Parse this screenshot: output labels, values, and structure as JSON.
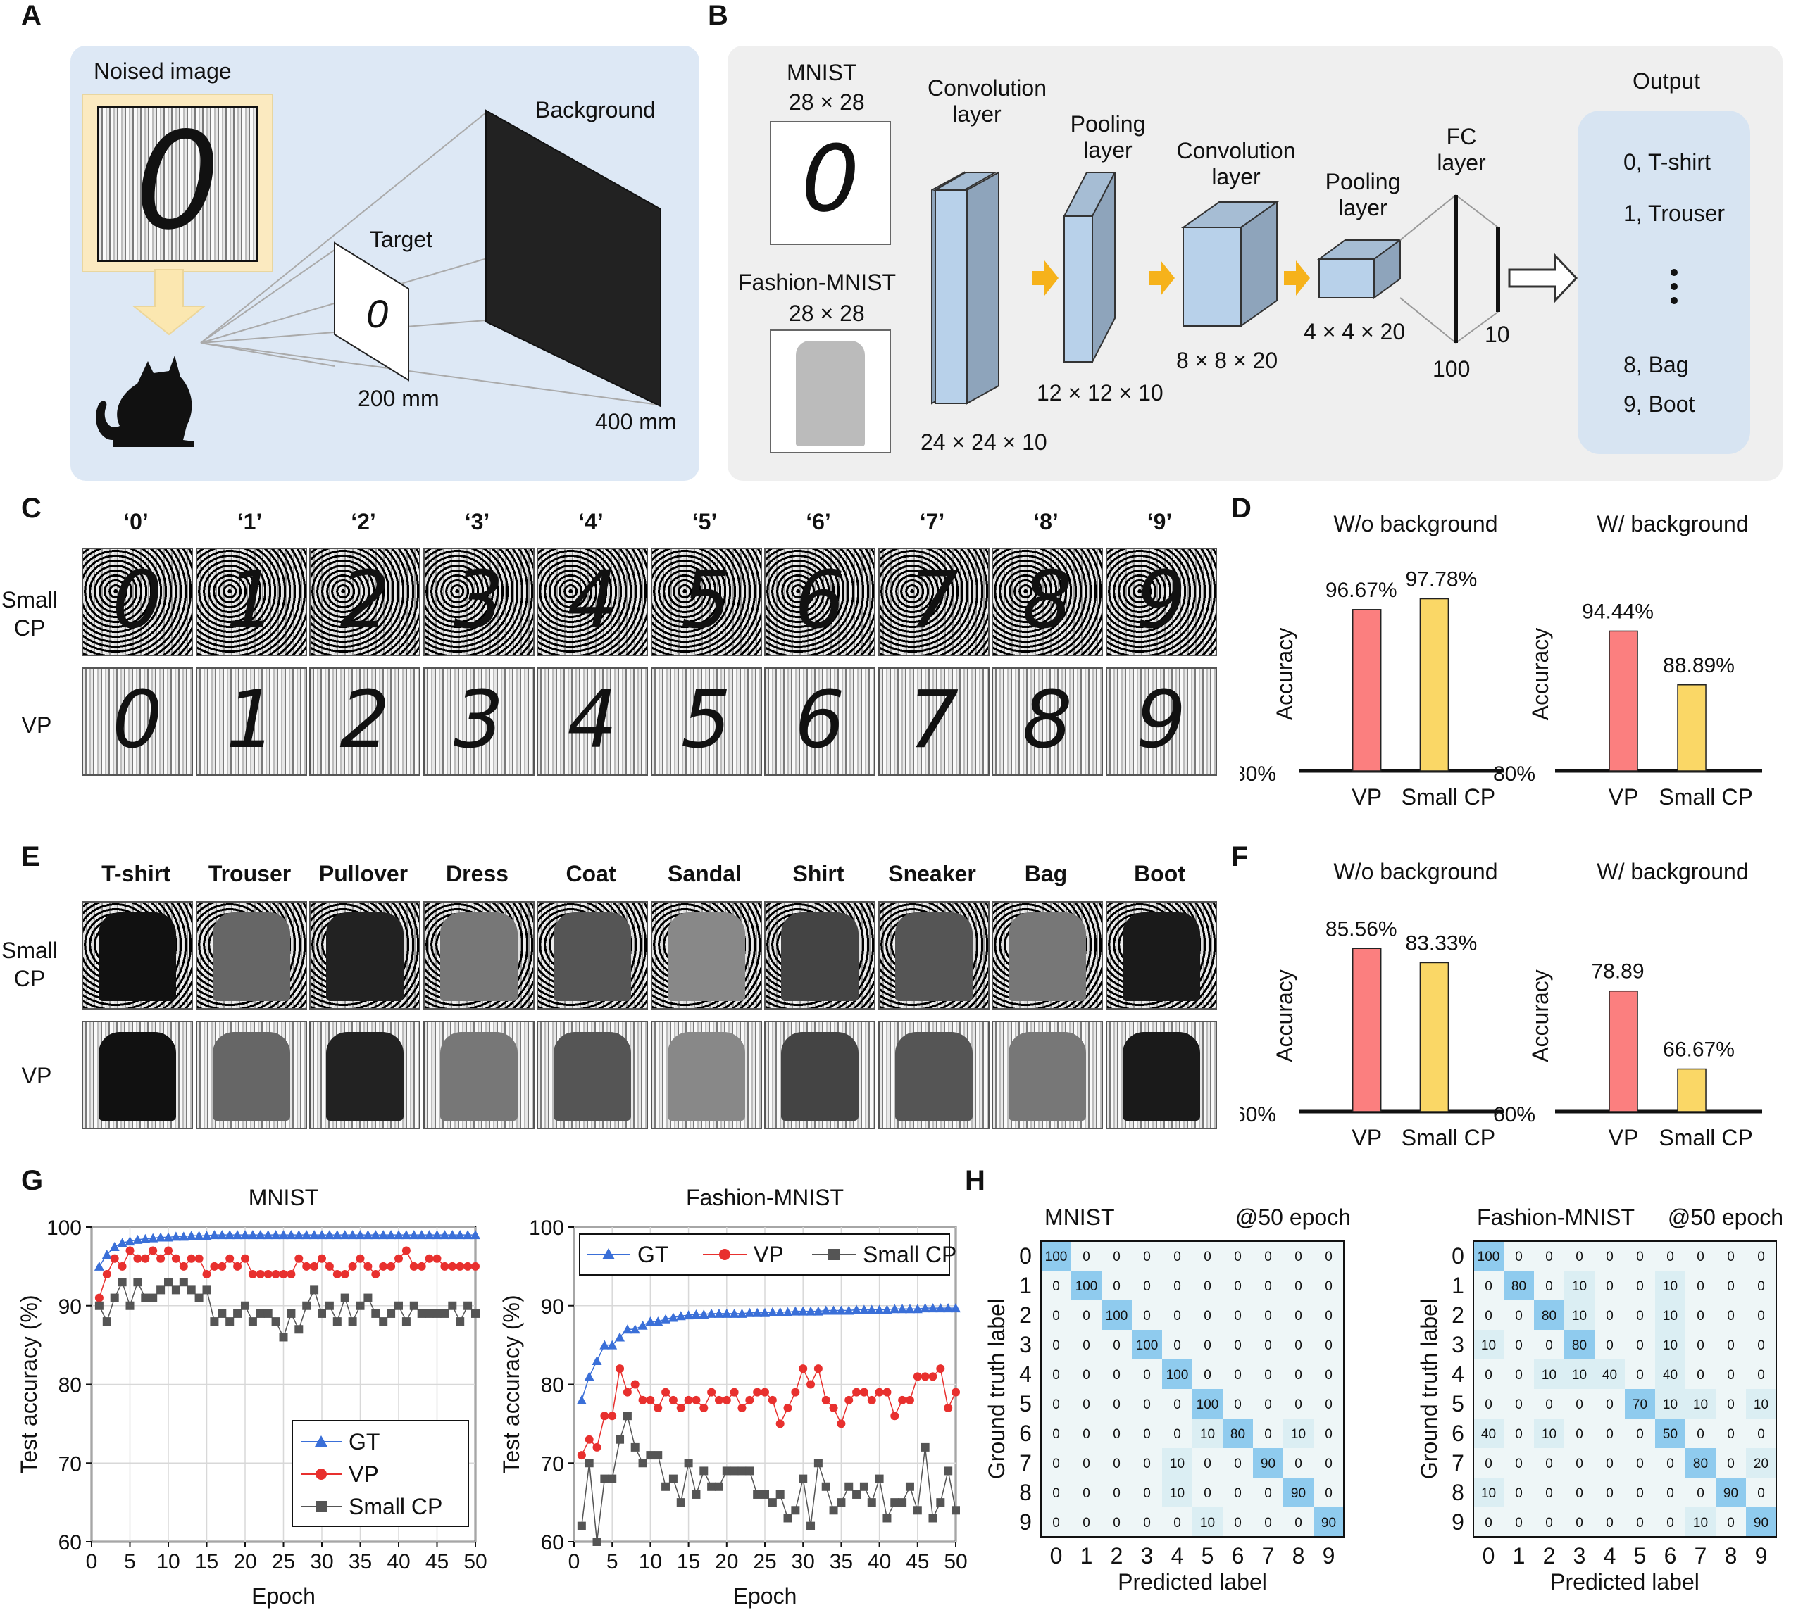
{
  "panel_letters": {
    "A": "A",
    "B": "B",
    "C": "C",
    "D": "D",
    "E": "E",
    "F": "F",
    "G": "G",
    "H": "H"
  },
  "panelA": {
    "noised_image": "Noised image",
    "background": "Background",
    "target": "Target",
    "dist_target": "200 mm",
    "dist_bg": "400 mm"
  },
  "panelB": {
    "mnist": "MNIST",
    "mnist_size": "28 × 28",
    "fashion": "Fashion-MNIST",
    "fashion_size": "28 × 28",
    "conv1": "Convolution layer",
    "conv1_size": "24 × 24 × 10",
    "pool1": "Pooling layer",
    "pool1_size": "12 × 12 × 10",
    "conv2": "Convolution layer",
    "conv2_size": "8 × 8 × 20",
    "pool2": "Pooling layer",
    "pool2_size": "4 × 4 × 20",
    "fc": "FC layer",
    "fc_100": "100",
    "fc_10": "10",
    "output": "Output",
    "outputs": [
      "0, T-shirt",
      "1, Trouser",
      "8, Bag",
      "9, Boot"
    ]
  },
  "panelC": {
    "headers": [
      "‘0’",
      "‘1’",
      "‘2’",
      "‘3’",
      "‘4’",
      "‘5’",
      "‘6’",
      "‘7’",
      "‘8’",
      "‘9’"
    ],
    "row1": "Small CP",
    "row2": "VP",
    "digits": [
      "0",
      "1",
      "2",
      "3",
      "4",
      "5",
      "6",
      "7",
      "8",
      "9"
    ]
  },
  "panelE": {
    "headers": [
      "T-shirt",
      "Trouser",
      "Pullover",
      "Dress",
      "Coat",
      "Sandal",
      "Shirt",
      "Sneaker",
      "Bag",
      "Boot"
    ],
    "row1": "Small CP",
    "row2": "VP"
  },
  "chart_data": [
    {
      "id": "D-left",
      "type": "bar",
      "title": "W/o background",
      "ylabel": "Accuracy",
      "baseline": "80%",
      "ylim": [
        80,
        100
      ],
      "categories": [
        "VP",
        "Small CP"
      ],
      "values": [
        96.67,
        97.78
      ],
      "labels": [
        "96.67%",
        "97.78%"
      ],
      "colors": [
        "#fb7f7f",
        "#fad766"
      ]
    },
    {
      "id": "D-right",
      "type": "bar",
      "title": "W/ background",
      "ylabel": "Accuracy",
      "baseline": "80%",
      "ylim": [
        80,
        100
      ],
      "categories": [
        "VP",
        "Small CP"
      ],
      "values": [
        94.44,
        88.89
      ],
      "labels": [
        "94.44%",
        "88.89%"
      ],
      "colors": [
        "#fb7f7f",
        "#fad766"
      ]
    },
    {
      "id": "F-left",
      "type": "bar",
      "title": "W/o background",
      "ylabel": "Accuracy",
      "baseline": "60%",
      "ylim": [
        60,
        90
      ],
      "categories": [
        "VP",
        "Small CP"
      ],
      "values": [
        85.56,
        83.33
      ],
      "labels": [
        "85.56%",
        "83.33%"
      ],
      "colors": [
        "#fb7f7f",
        "#fad766"
      ]
    },
    {
      "id": "F-right",
      "type": "bar",
      "title": "W/ background",
      "ylabel": "Accuracy",
      "baseline": "60%",
      "ylim": [
        60,
        90
      ],
      "categories": [
        "VP",
        "Small CP"
      ],
      "values": [
        78.89,
        66.67
      ],
      "labels": [
        "78.89",
        "66.67%"
      ],
      "colors": [
        "#fb7f7f",
        "#fad766"
      ]
    },
    {
      "id": "G-left",
      "type": "line",
      "title": "MNIST",
      "xlabel": "Epoch",
      "ylabel": "Test accuracy (%)",
      "xlim": [
        0,
        50
      ],
      "ylim": [
        60,
        100
      ],
      "xticks": [
        0,
        5,
        10,
        15,
        20,
        25,
        30,
        35,
        40,
        45,
        50
      ],
      "yticks": [
        60,
        70,
        80,
        90,
        100
      ],
      "x": [
        1,
        2,
        3,
        4,
        5,
        6,
        7,
        8,
        9,
        10,
        11,
        12,
        13,
        14,
        15,
        16,
        17,
        18,
        19,
        20,
        21,
        22,
        23,
        24,
        25,
        26,
        27,
        28,
        29,
        30,
        31,
        32,
        33,
        34,
        35,
        36,
        37,
        38,
        39,
        40,
        41,
        42,
        43,
        44,
        45,
        46,
        47,
        48,
        49,
        50
      ],
      "series": [
        {
          "name": "GT",
          "color": "#3a6fd8",
          "marker": "triangle",
          "values": [
            95,
            96.5,
            97.5,
            98,
            98.2,
            98.4,
            98.5,
            98.6,
            98.7,
            98.7,
            98.8,
            98.8,
            98.9,
            98.9,
            98.9,
            99,
            99,
            99,
            99,
            99,
            99,
            99,
            99,
            99,
            99,
            99,
            99,
            99,
            99,
            99,
            99,
            99,
            99,
            99,
            99,
            99,
            99,
            99,
            99,
            99,
            99,
            99,
            99,
            99,
            99,
            99,
            99,
            99,
            99,
            99
          ]
        },
        {
          "name": "VP",
          "color": "#e8302e",
          "marker": "circle",
          "values": [
            91,
            94,
            96,
            95,
            97,
            96,
            96,
            97,
            96,
            97,
            96,
            95,
            96,
            96,
            94,
            95,
            95,
            96,
            95,
            96,
            94,
            94,
            94,
            94,
            94,
            94,
            96,
            95,
            95,
            96,
            95,
            94,
            94,
            95,
            96,
            95,
            94,
            95,
            95,
            96,
            97,
            95,
            95,
            96,
            96,
            95,
            95,
            95,
            95,
            95
          ]
        },
        {
          "name": "Small CP",
          "color": "#555555",
          "marker": "square",
          "values": [
            90,
            88,
            91,
            93,
            90,
            93,
            91,
            91,
            92,
            93,
            92,
            93,
            92,
            91,
            92,
            88,
            89,
            88,
            89,
            90,
            88,
            89,
            89,
            88,
            86,
            89,
            87,
            90,
            92,
            89,
            90,
            88,
            91,
            88,
            90,
            91,
            89,
            88,
            89,
            90,
            88,
            90,
            89,
            89,
            89,
            89,
            90,
            88,
            90,
            89
          ]
        }
      ],
      "legend": "bottom-right"
    },
    {
      "id": "G-right",
      "type": "line",
      "title": "Fashion-MNIST",
      "xlabel": "Epoch",
      "ylabel": "Test accuracy (%)",
      "xlim": [
        0,
        50
      ],
      "ylim": [
        60,
        100
      ],
      "xticks": [
        0,
        5,
        10,
        15,
        20,
        25,
        30,
        35,
        40,
        45,
        50
      ],
      "yticks": [
        60,
        70,
        80,
        90,
        100
      ],
      "x": [
        1,
        2,
        3,
        4,
        5,
        6,
        7,
        8,
        9,
        10,
        11,
        12,
        13,
        14,
        15,
        16,
        17,
        18,
        19,
        20,
        21,
        22,
        23,
        24,
        25,
        26,
        27,
        28,
        29,
        30,
        31,
        32,
        33,
        34,
        35,
        36,
        37,
        38,
        39,
        40,
        41,
        42,
        43,
        44,
        45,
        46,
        47,
        48,
        49,
        50
      ],
      "series": [
        {
          "name": "GT",
          "color": "#3a6fd8",
          "marker": "triangle",
          "values": [
            78,
            81,
            83,
            85,
            85,
            86,
            87,
            87,
            87.5,
            88,
            88,
            88.3,
            88.5,
            88.7,
            88.8,
            88.9,
            88.9,
            89,
            89,
            89,
            89,
            89,
            89.1,
            89.1,
            89.1,
            89.2,
            89.2,
            89.2,
            89.3,
            89.3,
            89.3,
            89.3,
            89.4,
            89.4,
            89.4,
            89.4,
            89.5,
            89.5,
            89.5,
            89.5,
            89.5,
            89.6,
            89.6,
            89.6,
            89.6,
            89.7,
            89.7,
            89.7,
            89.7,
            89.7
          ]
        },
        {
          "name": "VP",
          "color": "#e8302e",
          "marker": "circle",
          "values": [
            71,
            73,
            72,
            76,
            76,
            82,
            79,
            80,
            78,
            78,
            77,
            79,
            78,
            77,
            78,
            78,
            77,
            79,
            78,
            78,
            79,
            77,
            78,
            79,
            79,
            78,
            75,
            77,
            79,
            82,
            80,
            82,
            78,
            77,
            75,
            78,
            79,
            79,
            78,
            79,
            79,
            76,
            78,
            78,
            81,
            81,
            81,
            82,
            77,
            79
          ]
        },
        {
          "name": "Small CP",
          "color": "#555555",
          "marker": "square",
          "values": [
            62,
            70,
            60,
            68,
            68,
            73,
            76,
            72,
            70,
            71,
            71,
            67,
            68,
            65,
            70,
            66,
            69,
            67,
            67,
            69,
            69,
            69,
            69,
            66,
            66,
            65,
            66,
            63,
            64,
            68,
            62,
            70,
            67,
            64,
            65,
            67,
            66,
            67,
            65,
            68,
            63,
            65,
            65,
            67,
            64,
            72,
            63,
            65,
            69,
            64
          ]
        }
      ],
      "legend": "top"
    },
    {
      "id": "H-left",
      "type": "heatmap",
      "title": "MNIST",
      "subtitle": "@50 epoch",
      "xlabel": "Predicted label",
      "ylabel": "Ground truth label",
      "labels": [
        "0",
        "1",
        "2",
        "3",
        "4",
        "5",
        "6",
        "7",
        "8",
        "9"
      ],
      "matrix": [
        [
          100,
          0,
          0,
          0,
          0,
          0,
          0,
          0,
          0,
          0
        ],
        [
          0,
          100,
          0,
          0,
          0,
          0,
          0,
          0,
          0,
          0
        ],
        [
          0,
          0,
          100,
          0,
          0,
          0,
          0,
          0,
          0,
          0
        ],
        [
          0,
          0,
          0,
          100,
          0,
          0,
          0,
          0,
          0,
          0
        ],
        [
          0,
          0,
          0,
          0,
          100,
          0,
          0,
          0,
          0,
          0
        ],
        [
          0,
          0,
          0,
          0,
          0,
          100,
          0,
          0,
          0,
          0
        ],
        [
          0,
          0,
          0,
          0,
          0,
          10,
          80,
          0,
          10,
          0
        ],
        [
          0,
          0,
          0,
          0,
          10,
          0,
          0,
          90,
          0,
          0
        ],
        [
          0,
          0,
          0,
          0,
          10,
          0,
          0,
          0,
          90,
          0
        ],
        [
          0,
          0,
          0,
          0,
          0,
          10,
          0,
          0,
          0,
          90
        ]
      ]
    },
    {
      "id": "H-right",
      "type": "heatmap",
      "title": "Fashion-MNIST",
      "subtitle": "@50 epoch",
      "xlabel": "Predicted label",
      "ylabel": "Ground truth label",
      "labels": [
        "0",
        "1",
        "2",
        "3",
        "4",
        "5",
        "6",
        "7",
        "8",
        "9"
      ],
      "matrix": [
        [
          100,
          0,
          0,
          0,
          0,
          0,
          0,
          0,
          0,
          0
        ],
        [
          0,
          80,
          0,
          10,
          0,
          0,
          10,
          0,
          0,
          0
        ],
        [
          0,
          0,
          80,
          10,
          0,
          0,
          10,
          0,
          0,
          0
        ],
        [
          10,
          0,
          0,
          80,
          0,
          0,
          10,
          0,
          0,
          0
        ],
        [
          0,
          0,
          10,
          10,
          40,
          0,
          40,
          0,
          0,
          0
        ],
        [
          0,
          0,
          0,
          0,
          0,
          70,
          10,
          10,
          0,
          10
        ],
        [
          40,
          0,
          10,
          0,
          0,
          0,
          50,
          0,
          0,
          0
        ],
        [
          0,
          0,
          0,
          0,
          0,
          0,
          0,
          80,
          0,
          20
        ],
        [
          10,
          0,
          0,
          0,
          0,
          0,
          0,
          0,
          90,
          0
        ],
        [
          0,
          0,
          0,
          0,
          0,
          0,
          0,
          10,
          0,
          90
        ]
      ]
    }
  ]
}
